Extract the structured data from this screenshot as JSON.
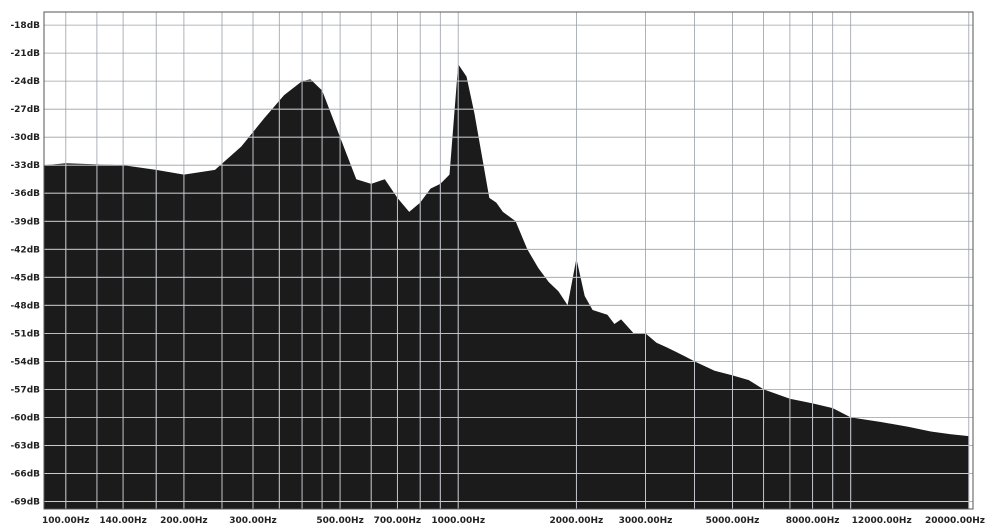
{
  "chart_data": {
    "type": "area",
    "title": "",
    "xlabel": "",
    "ylabel": "",
    "x_scale": "log",
    "xlim": [
      88,
      20500
    ],
    "ylim": [
      -69.8,
      -16.6
    ],
    "grid": true,
    "fill_color": "#1b1b1b",
    "y_ticks": [
      {
        "value": -18,
        "label": "-18dB"
      },
      {
        "value": -21,
        "label": "-21dB"
      },
      {
        "value": -24,
        "label": "-24dB"
      },
      {
        "value": -27,
        "label": "-27dB"
      },
      {
        "value": -30,
        "label": "-30dB"
      },
      {
        "value": -33,
        "label": "-33dB"
      },
      {
        "value": -36,
        "label": "-36dB"
      },
      {
        "value": -39,
        "label": "-39dB"
      },
      {
        "value": -42,
        "label": "-42dB"
      },
      {
        "value": -45,
        "label": "-45dB"
      },
      {
        "value": -48,
        "label": "-48dB"
      },
      {
        "value": -51,
        "label": "-51dB"
      },
      {
        "value": -54,
        "label": "-54dB"
      },
      {
        "value": -57,
        "label": "-57dB"
      },
      {
        "value": -60,
        "label": "-60dB"
      },
      {
        "value": -63,
        "label": "-63dB"
      },
      {
        "value": -66,
        "label": "-66dB"
      },
      {
        "value": -69,
        "label": "-69dB"
      }
    ],
    "x_ticks": [
      {
        "value": 100,
        "label": "100.00Hz"
      },
      {
        "value": 140,
        "label": "140.00Hz"
      },
      {
        "value": 200,
        "label": "200.00Hz"
      },
      {
        "value": 300,
        "label": "300.00Hz"
      },
      {
        "value": 500,
        "label": "500.00Hz"
      },
      {
        "value": 700,
        "label": "700.00Hz"
      },
      {
        "value": 1000,
        "label": "1000.00Hz"
      },
      {
        "value": 2000,
        "label": "2000.00Hz"
      },
      {
        "value": 3000,
        "label": "3000.00Hz"
      },
      {
        "value": 5000,
        "label": "5000.00Hz"
      },
      {
        "value": 8000,
        "label": "8000.00Hz"
      },
      {
        "value": 12000,
        "label": "12000.00Hz"
      },
      {
        "value": 20000,
        "label": "20000.00Hz"
      }
    ],
    "x_grid_values": [
      100,
      120,
      140,
      170,
      200,
      250,
      300,
      350,
      400,
      450,
      500,
      600,
      700,
      800,
      900,
      1000,
      2000,
      3000,
      4000,
      5000,
      6000,
      7000,
      8000,
      9000,
      10000,
      20000
    ],
    "series": [
      {
        "x": [
          88,
          100,
          140,
          170,
          200,
          240,
          280,
          320,
          360,
          400,
          420,
          450,
          500,
          550,
          600,
          650,
          700,
          750,
          800,
          850,
          900,
          950,
          1000,
          1050,
          1100,
          1200,
          1250,
          1300,
          1400,
          1500,
          1600,
          1700,
          1800,
          1900,
          2000,
          2100,
          2200,
          2400,
          2500,
          2600,
          2800,
          3000,
          3200,
          3400,
          3600,
          3800,
          4000,
          4500,
          5000,
          5500,
          6000,
          7000,
          8000,
          9000,
          10000,
          12000,
          14000,
          16000,
          18000,
          20000
        ],
        "y": [
          -33,
          -32.8,
          -33,
          -33.5,
          -34,
          -33.5,
          -31,
          -28,
          -25.5,
          -24,
          -23.8,
          -25,
          -30,
          -34.5,
          -35,
          -34.5,
          -36.5,
          -38,
          -37,
          -35.5,
          -35,
          -34,
          -22.2,
          -23.5,
          -27.5,
          -36.5,
          -37,
          -38,
          -39,
          -42,
          -44,
          -45.5,
          -46.5,
          -48,
          -43,
          -47,
          -48.5,
          -49,
          -50,
          -49.5,
          -51,
          -51,
          -52,
          -52.5,
          -53,
          -53.5,
          -54,
          -55,
          -55.5,
          -56,
          -57,
          -58,
          -58.5,
          -59,
          -60,
          -60.5,
          -61,
          -61.5,
          -61.8,
          -62
        ]
      }
    ]
  }
}
